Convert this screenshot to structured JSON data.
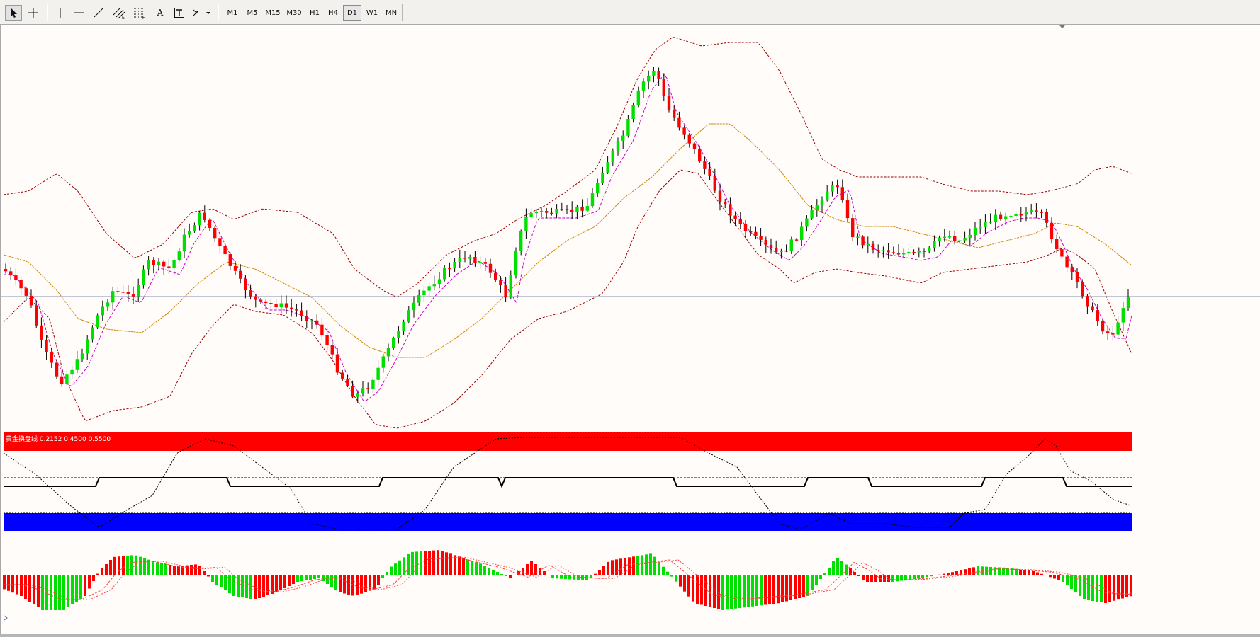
{
  "toolbar": {
    "tools": [
      {
        "name": "cursor-arrow",
        "icon": "arrow-cursor-icon",
        "active": true
      },
      {
        "name": "crosshair",
        "icon": "crosshair-icon",
        "active": false
      },
      {
        "name": "vertical-line",
        "icon": "vertical-line-icon",
        "active": false
      },
      {
        "name": "horizontal-line",
        "icon": "horizontal-line-icon",
        "active": false
      },
      {
        "name": "trendline",
        "icon": "trendline-icon",
        "active": false
      },
      {
        "name": "equidistant-channel",
        "icon": "channel-icon",
        "active": false
      },
      {
        "name": "fibonacci-retracement",
        "icon": "fibonacci-icon",
        "active": false
      },
      {
        "name": "text",
        "icon": "text-icon",
        "label": "A",
        "active": false
      },
      {
        "name": "text-label",
        "icon": "text-label-icon",
        "label": "T",
        "active": false
      },
      {
        "name": "arrows",
        "icon": "arrows-dropdown-icon",
        "active": false
      }
    ],
    "timeframes": [
      "M1",
      "M5",
      "M15",
      "M30",
      "H1",
      "H4",
      "D1",
      "W1",
      "MN"
    ],
    "active_timeframe": "D1"
  },
  "indicator": {
    "label": "黄金换盘线 0.2152 0.4500 0.5500"
  },
  "colors": {
    "background": "#fffcfa",
    "bull_candle": "#00e000",
    "bear_candle": "#ff0000",
    "wick": "#000000",
    "bollinger": "#990000",
    "ma_fast": "#cc00cc",
    "ma_slow": "#cc8800",
    "price_line": "#8090b0",
    "band_red": "#ff0000",
    "band_blue": "#0000ff",
    "macd_up": "#ff0000",
    "macd_down": "#00e000"
  }
}
